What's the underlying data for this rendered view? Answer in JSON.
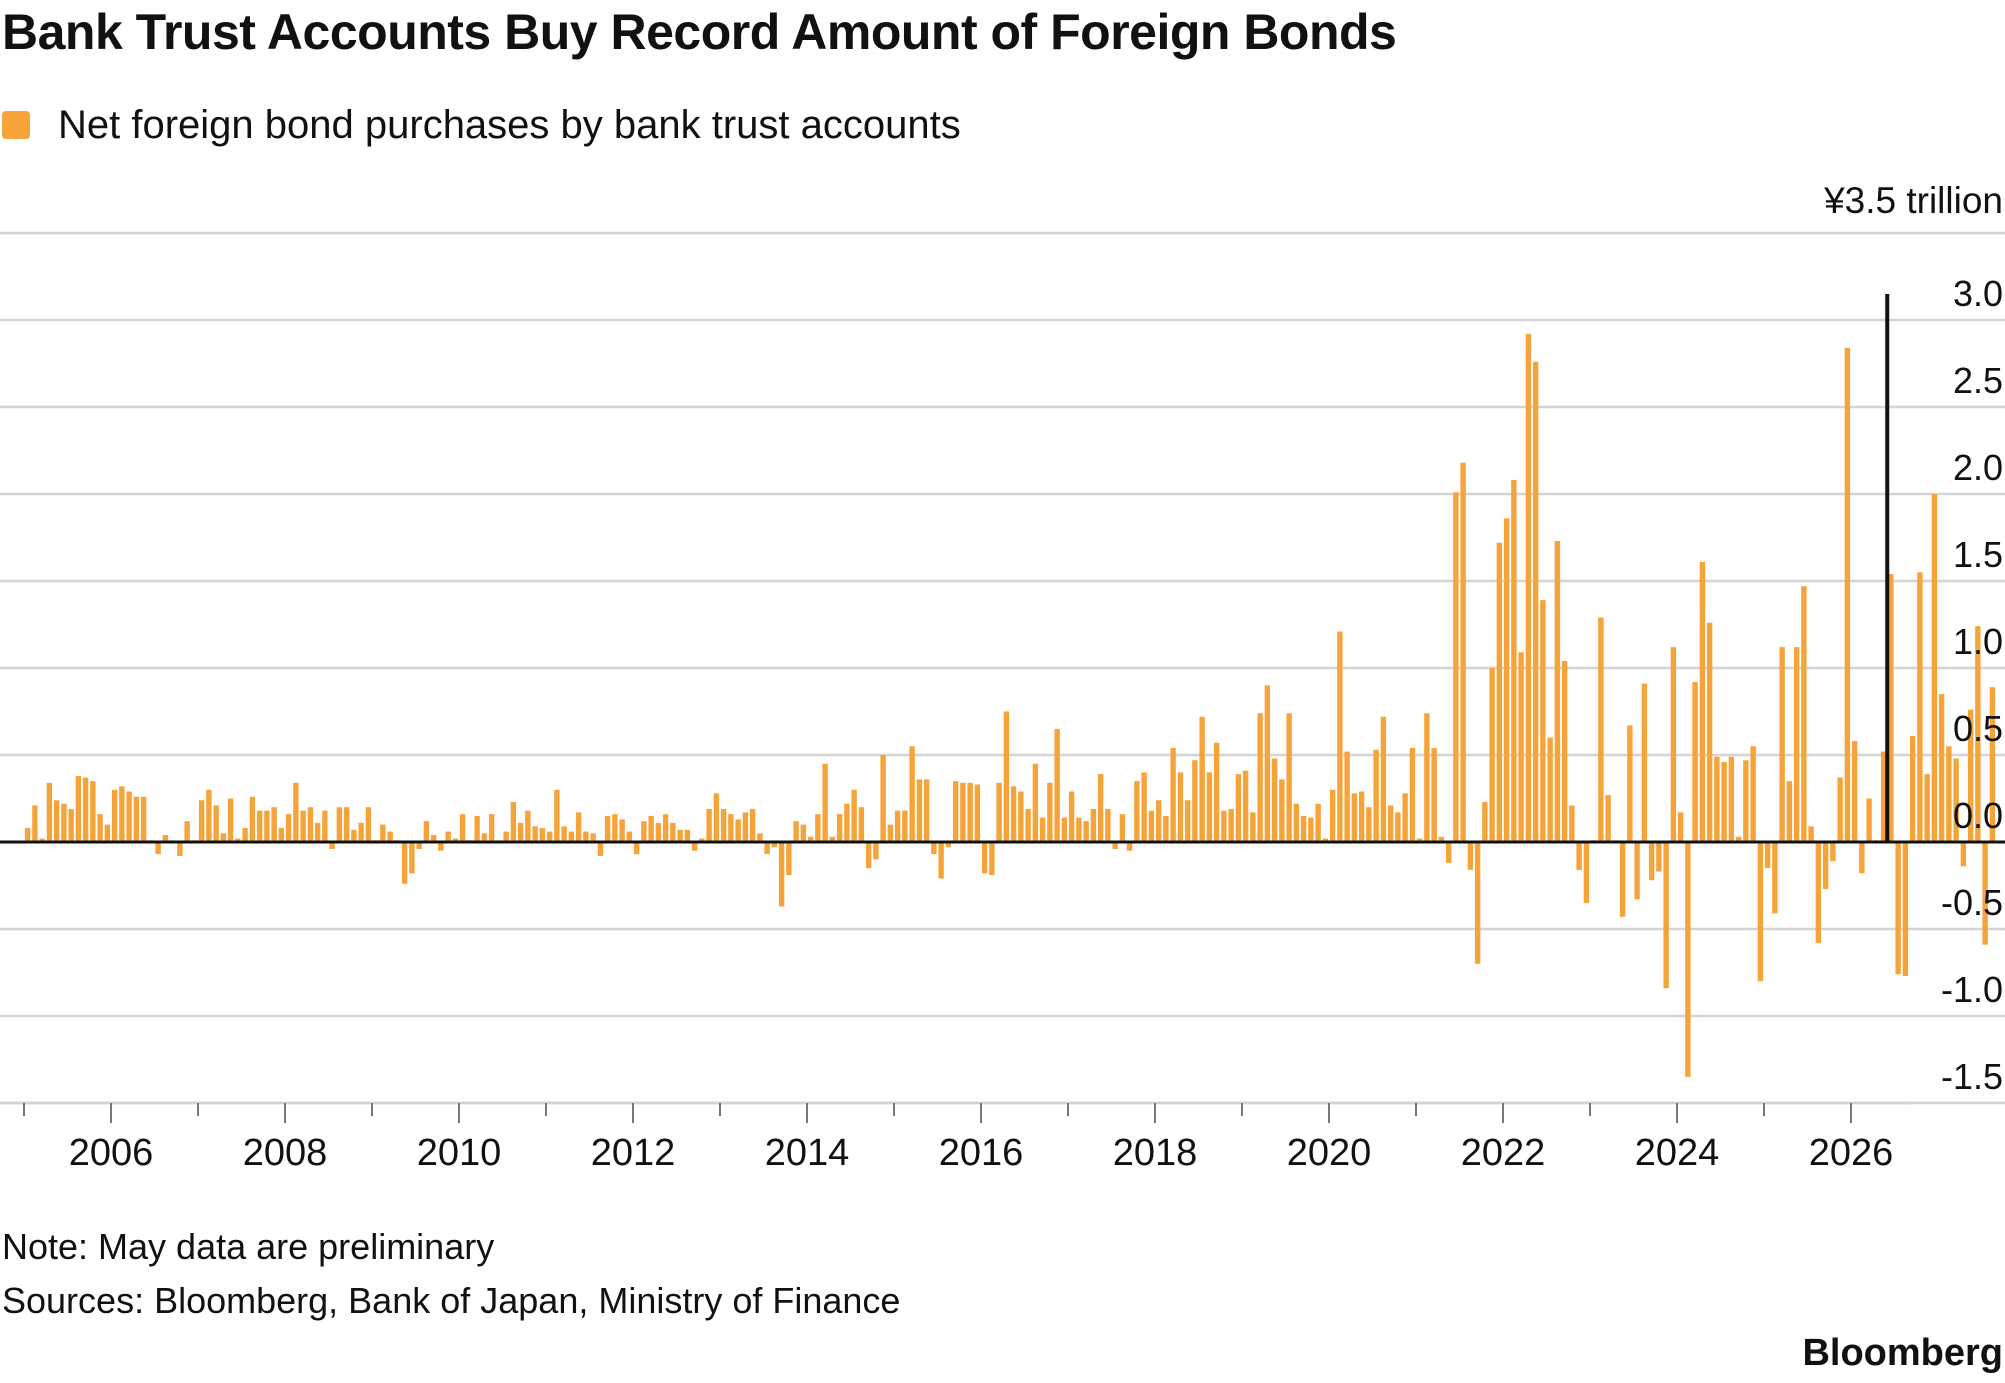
{
  "chart_data": {
    "type": "bar",
    "title": "Bank Trust Accounts Buy Record Amount of Foreign Bonds",
    "series": [
      {
        "name": "Net foreign bond purchases by bank trust accounts",
        "color": "#F6A43A",
        "start": "2005-01",
        "frequency": "monthly",
        "values": [
          0.08,
          0.21,
          0.02,
          0.34,
          0.24,
          0.22,
          0.19,
          0.38,
          0.37,
          0.35,
          0.16,
          0.1,
          0.3,
          0.32,
          0.29,
          0.26,
          0.26,
          0.01,
          -0.07,
          0.04,
          0.01,
          -0.08,
          0.12,
          0.01,
          0.24,
          0.3,
          0.21,
          0.05,
          0.25,
          0.02,
          0.08,
          0.26,
          0.18,
          0.18,
          0.2,
          0.08,
          0.16,
          0.34,
          0.18,
          0.2,
          0.11,
          0.18,
          -0.04,
          0.2,
          0.2,
          0.07,
          0.11,
          0.2,
          0.01,
          0.1,
          0.06,
          0.01,
          -0.24,
          -0.18,
          -0.04,
          0.12,
          0.04,
          -0.05,
          0.06,
          0.02,
          0.16,
          0.01,
          0.15,
          0.05,
          0.16,
          0.01,
          0.06,
          0.23,
          0.11,
          0.18,
          0.09,
          0.08,
          0.06,
          0.3,
          0.09,
          0.06,
          0.17,
          0.06,
          0.05,
          -0.08,
          0.15,
          0.16,
          0.13,
          0.06,
          -0.07,
          0.12,
          0.15,
          0.11,
          0.16,
          0.11,
          0.07,
          0.07,
          -0.05,
          0.02,
          0.19,
          0.28,
          0.19,
          0.16,
          0.13,
          0.17,
          0.19,
          0.05,
          -0.07,
          -0.03,
          -0.37,
          -0.19,
          0.12,
          0.1,
          0.03,
          0.16,
          0.45,
          0.03,
          0.16,
          0.22,
          0.3,
          0.2,
          -0.15,
          -0.1,
          0.5,
          0.1,
          0.18,
          0.18,
          0.55,
          0.36,
          0.36,
          -0.07,
          -0.21,
          -0.03,
          0.35,
          0.34,
          0.34,
          0.33,
          -0.18,
          -0.19,
          0.34,
          0.75,
          0.32,
          0.29,
          0.19,
          0.45,
          0.14,
          0.34,
          0.65,
          0.14,
          0.29,
          0.14,
          0.12,
          0.19,
          0.39,
          0.19,
          -0.04,
          0.16,
          -0.05,
          0.35,
          0.4,
          0.18,
          0.24,
          0.15,
          0.54,
          0.4,
          0.24,
          0.47,
          0.72,
          0.4,
          0.57,
          0.18,
          0.19,
          0.39,
          0.41,
          0.17,
          0.74,
          0.9,
          0.48,
          0.36,
          0.74,
          0.22,
          0.15,
          0.14,
          0.22,
          0.02,
          0.3,
          1.21,
          0.52,
          0.28,
          0.29,
          0.2,
          0.53,
          0.72,
          0.21,
          0.17,
          0.28,
          0.54,
          0.02,
          0.74,
          0.54,
          0.03,
          -0.12,
          2.01,
          2.18,
          -0.16,
          -0.7,
          0.23,
          1.0,
          1.72,
          1.86,
          2.08,
          1.09,
          2.92,
          2.76,
          1.39,
          0.6,
          1.73,
          1.04,
          0.21,
          -0.16,
          -0.35,
          0.01,
          1.29,
          0.27,
          0.01,
          -0.43,
          0.67,
          -0.33,
          0.91,
          -0.22,
          -0.17,
          -0.84,
          1.12,
          0.17,
          -1.35,
          0.92,
          1.61,
          1.26,
          0.49,
          0.46,
          0.49,
          0.03,
          0.47,
          0.55,
          -0.8,
          -0.15,
          -0.41,
          1.12,
          0.35,
          1.12,
          1.47,
          0.09,
          -0.58,
          -0.27,
          -0.11,
          0.37,
          2.84,
          0.58,
          -0.18,
          0.25,
          0.01,
          0.52,
          1.54,
          -0.76,
          -0.77,
          0.61,
          1.55,
          0.39,
          2.0,
          0.85,
          0.55,
          0.48,
          -0.14,
          0.76,
          1.24,
          -0.59,
          0.89
        ]
      }
    ],
    "y_unit_label": "¥3.5 trillion",
    "ylim": [
      -1.5,
      3.5
    ],
    "y_ticks": [
      3.5,
      3.0,
      2.5,
      2.0,
      1.5,
      1.0,
      0.5,
      0.0,
      -0.5,
      -1.0,
      -1.5
    ],
    "y_tick_labels": [
      "3.0",
      "2.5",
      "2.0",
      "1.5",
      "1.0",
      "0.5",
      "0.0",
      "-0.5",
      "-1.0",
      "-1.5"
    ],
    "x_tick_labels": [
      "2006",
      "2008",
      "2010",
      "2012",
      "2014",
      "2016",
      "2018",
      "2020",
      "2022",
      "2024",
      "2026"
    ],
    "xlim": [
      "2005-01",
      "2026-09"
    ],
    "marker_line_date": "2026-06",
    "grid": true,
    "legend_position": "top-left"
  },
  "footer": {
    "note": "Note: May data are preliminary",
    "sources": "Sources: Bloomberg, Bank of Japan, Ministry of Finance",
    "brand": "Bloomberg"
  }
}
